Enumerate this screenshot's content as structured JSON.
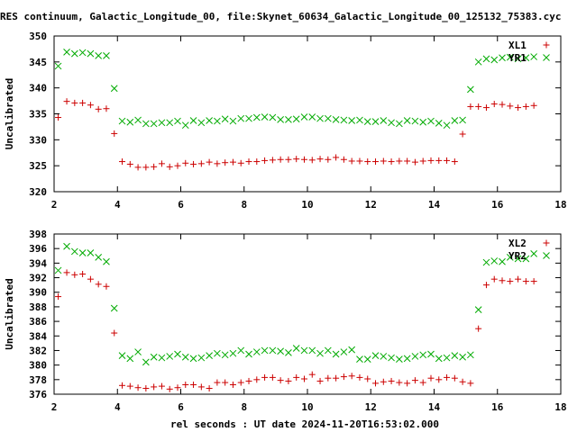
{
  "title": "RES continuum, Galactic_Longitude_00, file:Skynet_60634_Galactic_Longitude_00_125132_75383.cyc",
  "xlabel": "rel seconds : UT date 2024-11-20T16:53:02.000",
  "colors": {
    "red": "#cc0000",
    "green": "#00aa00",
    "axis": "#000000",
    "grid": "#a0a0a0"
  },
  "chart_data": [
    {
      "type": "scatter",
      "ylabel": "Uncalibrated",
      "xlim": [
        2,
        18
      ],
      "ylim": [
        320,
        350
      ],
      "xticks": [
        2,
        4,
        6,
        8,
        10,
        12,
        14,
        16,
        18
      ],
      "yticks": [
        320,
        325,
        330,
        335,
        340,
        345,
        350
      ],
      "legend_position": "top-right",
      "series": [
        {
          "name": "XL1",
          "marker": "+",
          "color": "#cc0000",
          "x": [
            2.13,
            2.4,
            2.65,
            2.9,
            3.15,
            3.4,
            3.65,
            3.9,
            4.15,
            4.4,
            4.65,
            4.9,
            5.15,
            5.4,
            5.65,
            5.9,
            6.15,
            6.4,
            6.65,
            6.9,
            7.15,
            7.4,
            7.65,
            7.9,
            8.15,
            8.4,
            8.65,
            8.9,
            9.15,
            9.4,
            9.65,
            9.9,
            10.15,
            10.4,
            10.65,
            10.9,
            11.15,
            11.4,
            11.65,
            11.9,
            12.15,
            12.4,
            12.65,
            12.9,
            13.15,
            13.4,
            13.65,
            13.9,
            14.15,
            14.4,
            14.65,
            14.9,
            15.15,
            15.4,
            15.65,
            15.9,
            16.15,
            16.4,
            16.65,
            16.9,
            17.15
          ],
          "y": [
            334.3,
            337.4,
            337.1,
            337.1,
            336.7,
            335.9,
            336.0,
            331.2,
            325.8,
            325.3,
            324.7,
            324.7,
            324.8,
            325.4,
            324.8,
            325.0,
            325.5,
            325.3,
            325.4,
            325.7,
            325.4,
            325.6,
            325.7,
            325.5,
            325.8,
            325.8,
            326.0,
            326.1,
            326.2,
            326.2,
            326.3,
            326.2,
            326.1,
            326.3,
            326.2,
            326.6,
            326.2,
            325.9,
            325.9,
            325.8,
            325.8,
            325.9,
            325.8,
            325.9,
            325.9,
            325.7,
            325.9,
            326.0,
            326.0,
            326.0,
            325.8,
            331.1,
            336.4,
            336.4,
            336.2,
            336.9,
            336.8,
            336.5,
            336.2,
            336.4,
            336.6
          ]
        },
        {
          "name": "YR1",
          "marker": "x",
          "color": "#00aa00",
          "x": [
            2.13,
            2.4,
            2.65,
            2.9,
            3.15,
            3.4,
            3.65,
            3.9,
            4.15,
            4.4,
            4.65,
            4.9,
            5.15,
            5.4,
            5.65,
            5.9,
            6.15,
            6.4,
            6.65,
            6.9,
            7.15,
            7.4,
            7.65,
            7.9,
            8.15,
            8.4,
            8.65,
            8.9,
            9.15,
            9.4,
            9.65,
            9.9,
            10.15,
            10.4,
            10.65,
            10.9,
            11.15,
            11.4,
            11.65,
            11.9,
            12.15,
            12.4,
            12.65,
            12.9,
            13.15,
            13.4,
            13.65,
            13.9,
            14.15,
            14.4,
            14.65,
            14.9,
            15.15,
            15.4,
            15.65,
            15.9,
            16.15,
            16.4,
            16.65,
            16.9,
            17.15
          ],
          "y": [
            344.2,
            346.9,
            346.6,
            346.8,
            346.6,
            346.2,
            346.2,
            339.9,
            333.6,
            333.4,
            333.8,
            333.1,
            333.1,
            333.3,
            333.3,
            333.6,
            332.8,
            333.7,
            333.3,
            333.7,
            333.6,
            334.0,
            333.6,
            334.1,
            334.1,
            334.3,
            334.4,
            334.3,
            333.9,
            333.9,
            334.0,
            334.4,
            334.4,
            334.1,
            334.1,
            333.9,
            333.8,
            333.7,
            333.8,
            333.5,
            333.5,
            333.7,
            333.3,
            333.1,
            333.7,
            333.6,
            333.4,
            333.6,
            333.2,
            332.8,
            333.7,
            333.8,
            339.7,
            345.0,
            345.6,
            345.4,
            345.8,
            345.9,
            345.6,
            345.8,
            346.0
          ]
        }
      ]
    },
    {
      "type": "scatter",
      "ylabel": "Uncalibrated",
      "xlabel": "rel seconds : UT date 2024-11-20T16:53:02.000",
      "xlim": [
        2,
        18
      ],
      "ylim": [
        376,
        398
      ],
      "xticks": [
        2,
        4,
        6,
        8,
        10,
        12,
        14,
        16,
        18
      ],
      "yticks": [
        376,
        378,
        380,
        382,
        384,
        386,
        388,
        390,
        392,
        394,
        396,
        398
      ],
      "legend_position": "top-right",
      "series": [
        {
          "name": "XL2",
          "marker": "+",
          "color": "#cc0000",
          "x": [
            2.13,
            2.4,
            2.65,
            2.9,
            3.15,
            3.4,
            3.65,
            3.9,
            4.15,
            4.4,
            4.65,
            4.9,
            5.15,
            5.4,
            5.65,
            5.9,
            6.15,
            6.4,
            6.65,
            6.9,
            7.15,
            7.4,
            7.65,
            7.9,
            8.15,
            8.4,
            8.65,
            8.9,
            9.15,
            9.4,
            9.65,
            9.9,
            10.15,
            10.4,
            10.65,
            10.9,
            11.15,
            11.4,
            11.65,
            11.9,
            12.15,
            12.4,
            12.65,
            12.9,
            13.15,
            13.4,
            13.65,
            13.9,
            14.15,
            14.4,
            14.65,
            14.9,
            15.15,
            15.4,
            15.65,
            15.9,
            16.15,
            16.4,
            16.65,
            16.9,
            17.15
          ],
          "y": [
            389.4,
            392.7,
            392.4,
            392.5,
            391.8,
            391.1,
            390.8,
            384.4,
            377.2,
            377.1,
            376.9,
            376.8,
            377.0,
            377.1,
            376.7,
            376.9,
            377.3,
            377.3,
            377.0,
            376.8,
            377.6,
            377.6,
            377.3,
            377.6,
            377.8,
            378.0,
            378.3,
            378.3,
            377.9,
            377.8,
            378.3,
            378.1,
            378.7,
            377.8,
            378.2,
            378.2,
            378.4,
            378.5,
            378.3,
            378.1,
            377.5,
            377.7,
            377.8,
            377.6,
            377.5,
            377.9,
            377.6,
            378.2,
            378.0,
            378.3,
            378.2,
            377.7,
            377.5,
            385.0,
            391.0,
            391.8,
            391.6,
            391.5,
            391.8,
            391.5,
            391.5
          ]
        },
        {
          "name": "YR2",
          "marker": "x",
          "color": "#00aa00",
          "x": [
            2.13,
            2.4,
            2.65,
            2.9,
            3.15,
            3.4,
            3.65,
            3.9,
            4.15,
            4.4,
            4.65,
            4.9,
            5.15,
            5.4,
            5.65,
            5.9,
            6.15,
            6.4,
            6.65,
            6.9,
            7.15,
            7.4,
            7.65,
            7.9,
            8.15,
            8.4,
            8.65,
            8.9,
            9.15,
            9.4,
            9.65,
            9.9,
            10.15,
            10.4,
            10.65,
            10.9,
            11.15,
            11.4,
            11.65,
            11.9,
            12.15,
            12.4,
            12.65,
            12.9,
            13.15,
            13.4,
            13.65,
            13.9,
            14.15,
            14.4,
            14.65,
            14.9,
            15.15,
            15.4,
            15.65,
            15.9,
            16.15,
            16.4,
            16.65,
            16.9,
            17.15
          ],
          "y": [
            393.0,
            396.3,
            395.6,
            395.4,
            395.4,
            394.8,
            394.2,
            387.8,
            381.3,
            380.9,
            381.8,
            380.4,
            381.1,
            381.0,
            381.2,
            381.5,
            381.1,
            380.9,
            381.0,
            381.3,
            381.6,
            381.4,
            381.6,
            382.0,
            381.5,
            381.8,
            382.0,
            382.0,
            381.9,
            381.7,
            382.3,
            382.0,
            382.0,
            381.6,
            382.0,
            381.5,
            381.8,
            382.1,
            380.8,
            380.8,
            381.3,
            381.2,
            381.0,
            380.8,
            380.9,
            381.2,
            381.4,
            381.5,
            380.9,
            381.0,
            381.3,
            381.1,
            381.4,
            387.6,
            394.1,
            394.3,
            394.2,
            394.8,
            394.6,
            394.6,
            395.3
          ]
        }
      ]
    }
  ]
}
